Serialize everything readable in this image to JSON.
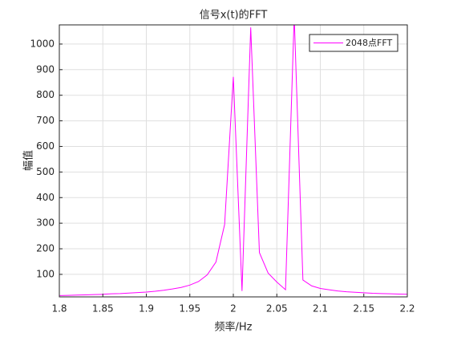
{
  "chart_data": {
    "type": "line",
    "title": "信号x(t)的FFT",
    "x_label": "频率/Hz",
    "y_label": "幅值",
    "x": [
      1.8,
      1.81,
      1.82,
      1.83,
      1.84,
      1.85,
      1.86,
      1.87,
      1.88,
      1.89,
      1.9,
      1.91,
      1.92,
      1.93,
      1.94,
      1.95,
      1.96,
      1.97,
      1.98,
      1.99,
      2.0,
      2.01,
      2.02,
      2.03,
      2.04,
      2.05,
      2.06,
      2.07,
      2.08,
      2.09,
      2.1,
      2.11,
      2.12,
      2.13,
      2.14,
      2.15,
      2.16,
      2.17,
      2.18,
      2.19,
      2.2
    ],
    "series": [
      {
        "name": "2048点FFT",
        "color": "#ff00ff",
        "values": [
          17,
          18,
          19,
          20,
          21,
          22,
          24,
          25,
          27,
          29,
          31,
          34,
          38,
          43,
          49,
          58,
          72,
          98,
          148,
          295,
          872,
          35,
          1065,
          185,
          105,
          70,
          40,
          1110,
          78,
          55,
          45,
          40,
          35,
          32,
          30,
          28,
          26,
          25,
          24,
          23,
          22
        ]
      }
    ],
    "xlim": [
      1.8,
      2.2
    ],
    "ylim": [
      12,
      1075
    ],
    "xticks": [
      1.8,
      1.85,
      1.9,
      1.95,
      2,
      2.05,
      2.1,
      2.15,
      2.2
    ],
    "yticks": [
      100,
      200,
      300,
      400,
      500,
      600,
      700,
      800,
      900,
      1000
    ],
    "grid": true,
    "legend": "top-right"
  }
}
